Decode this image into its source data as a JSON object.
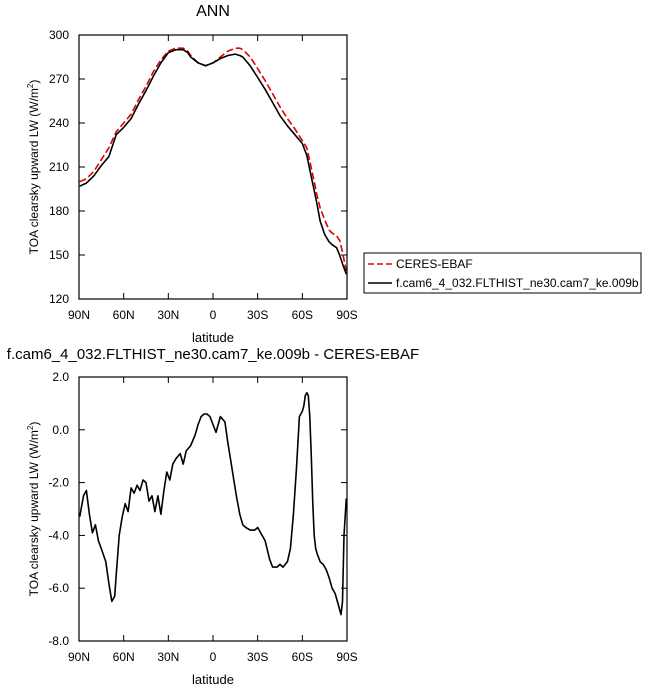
{
  "chart_data": [
    {
      "type": "line",
      "title": "ANN",
      "xlabel": "latitude",
      "ylabel": "TOA clearsky upward LW (W/m²)",
      "ylabel_main": "TOA clearsky upward LW (W/m",
      "ylabel_sup": "2",
      "ylabel_tail": ")",
      "xlim": [
        90,
        -90
      ],
      "ylim": [
        120,
        300
      ],
      "x_ticks": [
        90,
        60,
        30,
        0,
        -30,
        -60,
        -90
      ],
      "x_tick_labels": [
        "90N",
        "60N",
        "30N",
        "0",
        "30S",
        "60S",
        "90S"
      ],
      "y_ticks": [
        120,
        150,
        180,
        210,
        240,
        270,
        300
      ],
      "y_tick_labels": [
        "120",
        "150",
        "180",
        "210",
        "240",
        "270",
        "300"
      ],
      "legend_position": "right",
      "series": [
        {
          "name": "CERES-EBAF",
          "color": "#dd0000",
          "dashed": true,
          "x": [
            89.5,
            85,
            80,
            75,
            70,
            65,
            60,
            55,
            50,
            45,
            40,
            35,
            30,
            25,
            20,
            17,
            15,
            10,
            5,
            0,
            -5,
            -10,
            -15,
            -18,
            -20,
            -25,
            -30,
            -35,
            -40,
            -45,
            -50,
            -55,
            -60,
            -63,
            -65,
            -68,
            -70,
            -72,
            -75,
            -78,
            -80,
            -83,
            -85,
            -87,
            -89.5
          ],
          "y": [
            200,
            202,
            207,
            215,
            223,
            234,
            240,
            246,
            256,
            265,
            275,
            283,
            289,
            291,
            291,
            289,
            286,
            281,
            279,
            281,
            285,
            289,
            291,
            291,
            290,
            285,
            277,
            269,
            260,
            251,
            243,
            236,
            228,
            223,
            214,
            200,
            190,
            182,
            174,
            167,
            165,
            163,
            160,
            152,
            139
          ]
        },
        {
          "name": "f.cam6_4_032.FLTHIST_ne30.cam7_ke.009b",
          "color": "#000000",
          "dashed": false,
          "x": [
            89.5,
            85,
            80,
            75,
            70,
            65,
            60,
            55,
            50,
            45,
            40,
            35,
            30,
            25,
            20,
            17,
            15,
            10,
            5,
            0,
            -5,
            -10,
            -15,
            -18,
            -20,
            -25,
            -30,
            -35,
            -40,
            -45,
            -50,
            -55,
            -60,
            -63,
            -65,
            -68,
            -70,
            -72,
            -75,
            -78,
            -80,
            -83,
            -85,
            -87,
            -89.5
          ],
          "y": [
            197,
            199,
            204,
            211,
            217,
            232,
            237,
            243,
            253,
            262,
            272,
            281,
            288,
            290,
            290,
            288,
            285,
            281,
            279,
            281,
            284,
            286,
            287,
            286,
            285,
            279,
            271,
            263,
            254,
            245,
            238,
            232,
            226,
            218,
            208,
            194,
            184,
            173,
            164,
            159,
            157,
            155,
            150,
            144,
            137
          ]
        }
      ]
    },
    {
      "type": "line",
      "title": "f.cam6_4_032.FLTHIST_ne30.cam7_ke.009b - CERES-EBAF",
      "xlabel": "latitude",
      "ylabel": "TOA clearsky upward LW (W/m²)",
      "ylabel_main": "TOA clearsky upward LW (W/m",
      "ylabel_sup": "2",
      "ylabel_tail": ")",
      "xlim": [
        90,
        -90
      ],
      "ylim": [
        -8,
        2
      ],
      "x_ticks": [
        90,
        60,
        30,
        0,
        -30,
        -60,
        -90
      ],
      "x_tick_labels": [
        "90N",
        "60N",
        "30N",
        "0",
        "30S",
        "60S",
        "90S"
      ],
      "y_ticks": [
        -8,
        -6,
        -4,
        -2,
        0,
        2
      ],
      "y_tick_labels": [
        "-8.0",
        "-6.0",
        "-4.0",
        "-2.0",
        "0.0",
        "2.0"
      ],
      "series": [
        {
          "color": "#000000",
          "dashed": false,
          "x": [
            89.5,
            87,
            85,
            83,
            81,
            79,
            77,
            75,
            72,
            70,
            68,
            66,
            65,
            63,
            61,
            59,
            57,
            55,
            53,
            51,
            49,
            47,
            45,
            43,
            41,
            39,
            37,
            35,
            33,
            31,
            29,
            27,
            25,
            22,
            20,
            18,
            15,
            12,
            10,
            8,
            6,
            4,
            2,
            0,
            -2,
            -5,
            -8,
            -10,
            -12,
            -14,
            -16,
            -18,
            -20,
            -22,
            -25,
            -28,
            -30,
            -32,
            -35,
            -38,
            -40,
            -43,
            -45,
            -47,
            -50,
            -52,
            -54,
            -56,
            -58,
            -60,
            -61,
            -62,
            -63,
            -64,
            -65,
            -66,
            -67,
            -68,
            -69,
            -70,
            -72,
            -74,
            -76,
            -78,
            -80,
            -82,
            -84,
            -86,
            -87,
            -88,
            -89.5
          ],
          "y": [
            -3.3,
            -2.5,
            -2.3,
            -3.2,
            -3.9,
            -3.6,
            -4.2,
            -4.5,
            -5.0,
            -5.8,
            -6.5,
            -6.3,
            -5.5,
            -4.0,
            -3.3,
            -2.8,
            -3.1,
            -2.2,
            -2.4,
            -2.1,
            -2.3,
            -1.9,
            -2.0,
            -2.7,
            -2.5,
            -3.1,
            -2.5,
            -3.2,
            -2.3,
            -1.6,
            -1.9,
            -1.3,
            -1.1,
            -0.9,
            -1.3,
            -0.8,
            -0.6,
            -0.2,
            0.2,
            0.5,
            0.6,
            0.6,
            0.5,
            0.2,
            -0.1,
            0.5,
            0.3,
            -0.5,
            -1.2,
            -1.9,
            -2.6,
            -3.2,
            -3.6,
            -3.7,
            -3.8,
            -3.8,
            -3.7,
            -3.9,
            -4.2,
            -4.9,
            -5.2,
            -5.2,
            -5.1,
            -5.2,
            -5.0,
            -4.5,
            -3.2,
            -1.5,
            0.5,
            0.7,
            0.9,
            1.3,
            1.4,
            1.3,
            0.5,
            -1.0,
            -2.8,
            -4.0,
            -4.5,
            -4.7,
            -5.0,
            -5.1,
            -5.3,
            -5.6,
            -6.0,
            -6.2,
            -6.6,
            -7.0,
            -6.5,
            -4.0,
            -2.6
          ]
        }
      ]
    }
  ]
}
